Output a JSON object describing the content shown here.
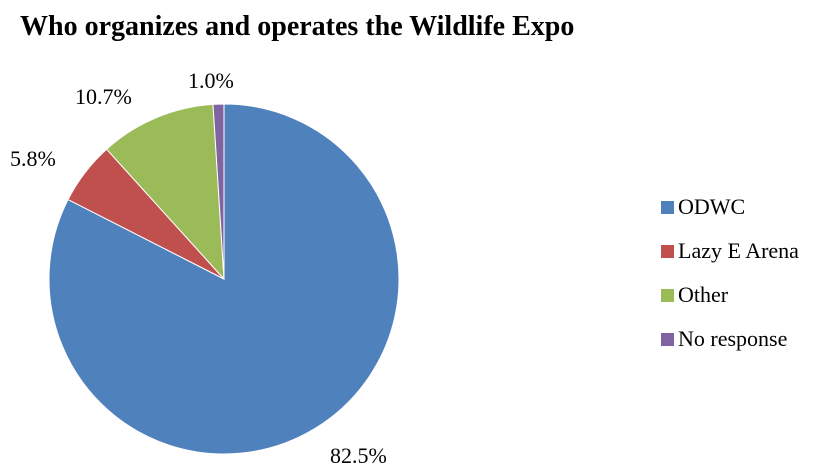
{
  "chart_data": {
    "type": "pie",
    "title": "Who organizes and operates the Wildlife Expo",
    "slices": [
      {
        "label": "ODWC",
        "value": 82.5,
        "display": "82.5%",
        "color": "#4F81BD"
      },
      {
        "label": "Lazy E Arena",
        "value": 5.8,
        "display": "5.8%",
        "color": "#C0504D"
      },
      {
        "label": "Other",
        "value": 10.7,
        "display": "10.7%",
        "color": "#9BBB59"
      },
      {
        "label": "No response",
        "value": 1.0,
        "display": "1.0%",
        "color": "#8064A2"
      }
    ],
    "legend_position": "right"
  }
}
